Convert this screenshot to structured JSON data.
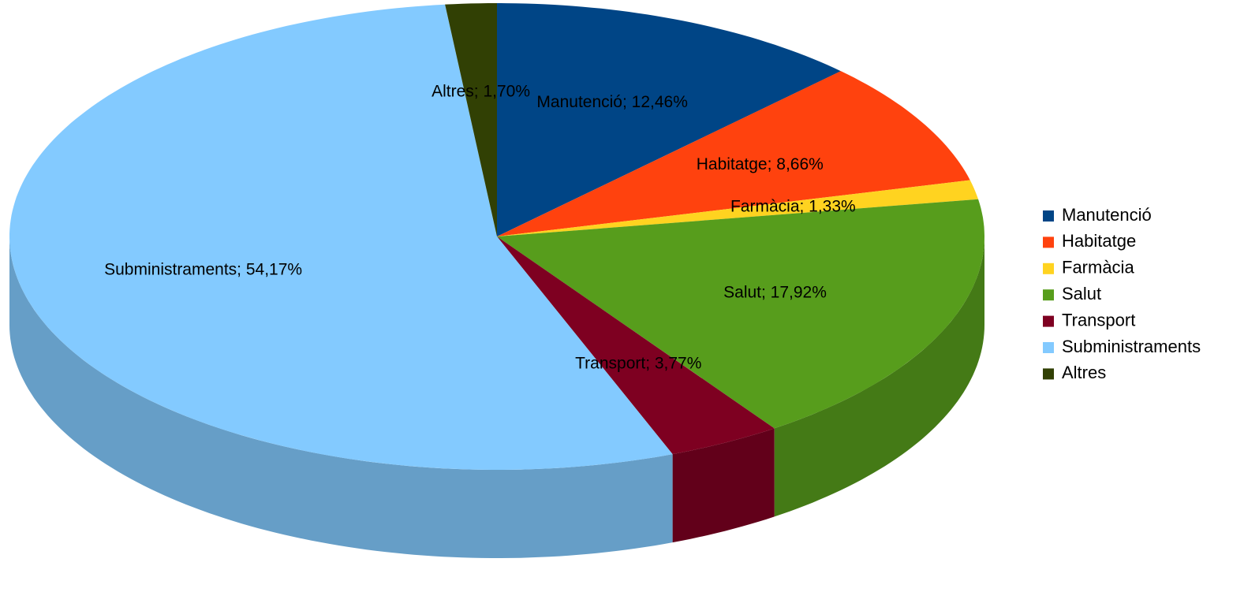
{
  "chart_data": {
    "type": "pie3d",
    "categories": [
      "Manutenció",
      "Habitatge",
      "Farmàcia",
      "Salut",
      "Transport",
      "Subministraments",
      "Altres"
    ],
    "values": [
      12.46,
      8.66,
      1.33,
      17.92,
      3.77,
      54.17,
      1.7
    ],
    "value_labels": [
      "Manutenció; 12,46%",
      "Habitatge; 8,66%",
      "Farmàcia; 1,33%",
      "Salut; 17,92%",
      "Transport; 3,77%",
      "Subministraments; 54,17%",
      "Altres; 1,70%"
    ],
    "colors": [
      "#004586",
      "#ff420e",
      "#ffd320",
      "#579d1c",
      "#7e0021",
      "#83caff",
      "#314004"
    ],
    "legend": "right"
  }
}
